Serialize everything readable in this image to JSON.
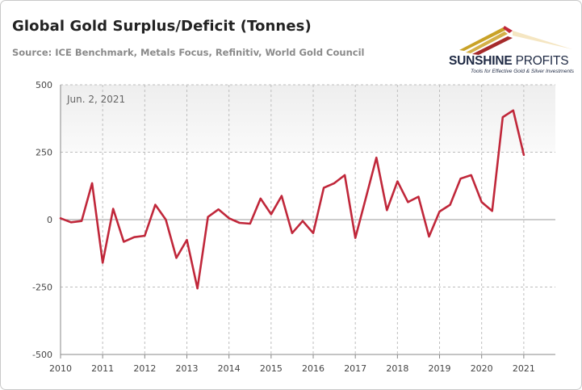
{
  "header": {
    "title": "Global Gold Surplus/Deficit (Tonnes)",
    "subtitle": "Source: ICE Benchmark, Metals Focus, Refinitiv, World Gold Council"
  },
  "logo": {
    "name_bold": "SUNSHINE",
    "name_light": " PROFITS",
    "tagline": "Tools for Effective Gold & Silver Investments"
  },
  "colors": {
    "series": "#c0273a",
    "plot_band": "#eeeeee",
    "grid": "#bdbdbd"
  },
  "chart_data": {
    "type": "line",
    "title": "Global Gold Surplus/Deficit (Tonnes)",
    "annotation": "Jun. 2, 2021",
    "ylim": [
      -500,
      500
    ],
    "yticks": [
      500,
      250,
      0,
      -250,
      -500
    ],
    "ytick_labels": [
      "500",
      "250",
      "0",
      "-250",
      "-500"
    ],
    "xlim": [
      2010,
      2021.75
    ],
    "xticks": [
      2010,
      2011,
      2012,
      2013,
      2014,
      2015,
      2016,
      2017,
      2018,
      2019,
      2020,
      2021
    ],
    "xtick_labels": [
      "2010",
      "2011",
      "2012",
      "2013",
      "2014",
      "2015",
      "2016",
      "2017",
      "2018",
      "2019",
      "2020",
      "2021"
    ],
    "grid": true,
    "series": [
      {
        "x": [
          2010.0,
          2010.25,
          2010.5,
          2010.75,
          2011.0,
          2011.25,
          2011.5,
          2011.75,
          2012.0,
          2012.25,
          2012.5,
          2012.75,
          2013.0,
          2013.25,
          2013.5,
          2013.75,
          2014.0,
          2014.25,
          2014.5,
          2014.75,
          2015.0,
          2015.25,
          2015.5,
          2015.75,
          2016.0,
          2016.25,
          2016.5,
          2016.75,
          2017.0,
          2017.25,
          2017.5,
          2017.75,
          2018.0,
          2018.25,
          2018.5,
          2018.75,
          2019.0,
          2019.25,
          2019.5,
          2019.75,
          2020.0,
          2020.25,
          2020.5,
          2020.75,
          2021.0
        ],
        "y": [
          5,
          -10,
          -5,
          135,
          -160,
          40,
          -82,
          -65,
          -60,
          55,
          0,
          -142,
          -75,
          -255,
          10,
          38,
          5,
          -12,
          -15,
          78,
          20,
          88,
          -50,
          -5,
          -50,
          118,
          135,
          165,
          -68,
          80,
          230,
          35,
          142,
          65,
          85,
          -63,
          30,
          55,
          152,
          165,
          65,
          32,
          380,
          405,
          240
        ]
      }
    ]
  }
}
